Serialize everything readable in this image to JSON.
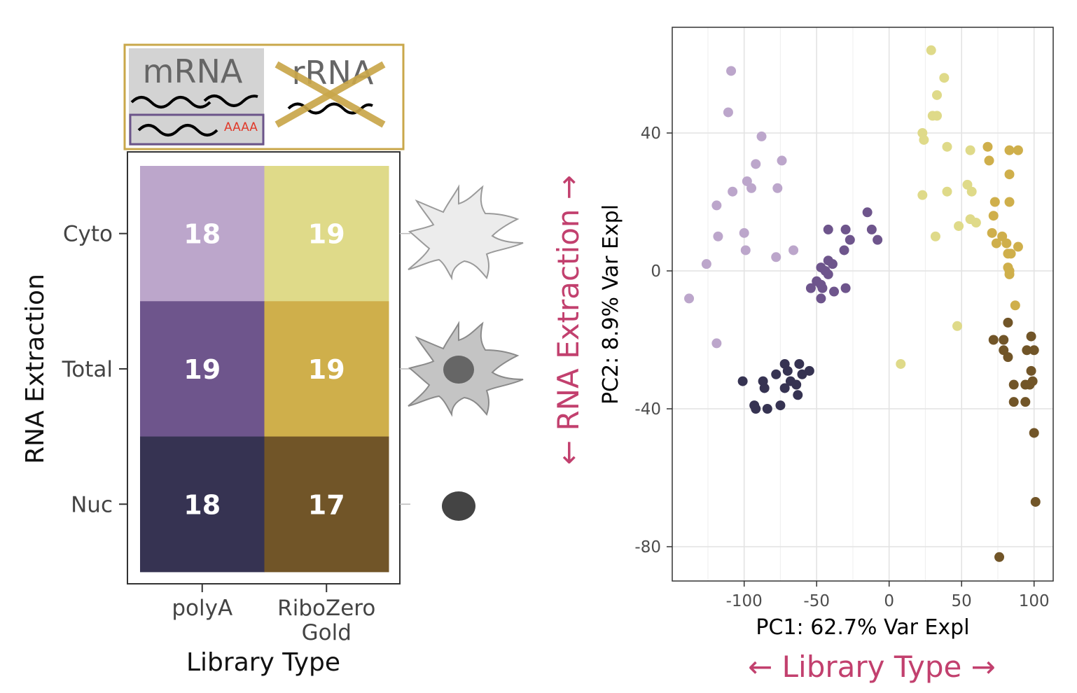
{
  "legend_box": {
    "mrna_label": "mRNA",
    "polya_tail_label": "AAAA",
    "rrna_label": "rRNA"
  },
  "side_labels": {
    "vertical": "← RNA Extraction →",
    "horizontal": "← Library Type →"
  },
  "colors": {
    "polyA_Cyto": "#bca6cb",
    "polyA_Total": "#6e558c",
    "polyA_Nuc": "#363352",
    "RiboZero_Cyto": "#dfda89",
    "RiboZero_Total": "#cfaf4b",
    "RiboZero_Nuc": "#715528",
    "accent": "#c2406e",
    "legend_border": "#c9a74a",
    "polya_box_border": "#6b548a"
  },
  "chart_data": [
    {
      "type": "heatmap",
      "xlabel": "Library Type",
      "ylabel": "RNA Extraction",
      "x_categories": [
        "polyA",
        "RiboZero Gold"
      ],
      "y_categories": [
        "Cyto",
        "Total",
        "Nuc"
      ],
      "values": [
        [
          18,
          19
        ],
        [
          19,
          19
        ],
        [
          18,
          17
        ]
      ]
    },
    {
      "type": "scatter",
      "xlabel": "PC1: 62.7% Var Expl",
      "ylabel": "PC2: 8.9% Var Expl",
      "xlim": [
        -150,
        105
      ],
      "ylim": [
        -90,
        65
      ],
      "x_ticks": [
        -100,
        -50,
        0,
        50,
        100
      ],
      "y_ticks": [
        40,
        0,
        -40,
        -80
      ],
      "grid": true,
      "series": [
        {
          "group": "polyA_Cyto",
          "points": [
            [
              -109,
              58
            ],
            [
              -111,
              46
            ],
            [
              -88,
              39
            ],
            [
              -92,
              31
            ],
            [
              -74,
              32
            ],
            [
              -98,
              26
            ],
            [
              -95,
              24
            ],
            [
              -77,
              24
            ],
            [
              -108,
              23
            ],
            [
              -119,
              19
            ],
            [
              -100,
              11
            ],
            [
              -118,
              10
            ],
            [
              -99,
              6
            ],
            [
              -66,
              6
            ],
            [
              -126,
              2
            ],
            [
              -78,
              4
            ],
            [
              -138,
              -8
            ],
            [
              -119,
              -21
            ]
          ]
        },
        {
          "group": "polyA_Total",
          "points": [
            [
              -15,
              17
            ],
            [
              -42,
              12
            ],
            [
              -30,
              12
            ],
            [
              -12,
              12
            ],
            [
              -8,
              9
            ],
            [
              -27,
              9
            ],
            [
              -31,
              6
            ],
            [
              -42,
              3
            ],
            [
              -39,
              2
            ],
            [
              -47,
              1
            ],
            [
              -44,
              0
            ],
            [
              -42,
              -1
            ],
            [
              -50,
              -3
            ],
            [
              -47,
              -4
            ],
            [
              -54,
              -5
            ],
            [
              -46,
              -5
            ],
            [
              -38,
              -6
            ],
            [
              -30,
              -5
            ],
            [
              -47,
              -8
            ]
          ]
        },
        {
          "group": "polyA_Nuc",
          "points": [
            [
              -72,
              -27
            ],
            [
              -62,
              -27
            ],
            [
              -70,
              -29
            ],
            [
              -55,
              -29
            ],
            [
              -101,
              -32
            ],
            [
              -87,
              -32
            ],
            [
              -60,
              -30
            ],
            [
              -68,
              -32
            ],
            [
              -78,
              -30
            ],
            [
              -86,
              -34
            ],
            [
              -72,
              -34
            ],
            [
              -64,
              -33
            ],
            [
              -63,
              -36
            ],
            [
              -93,
              -39
            ],
            [
              -75,
              -39
            ],
            [
              -92,
              -40
            ],
            [
              -84,
              -40
            ]
          ]
        },
        {
          "group": "RiboZero_Cyto",
          "points": [
            [
              29,
              64
            ],
            [
              38,
              56
            ],
            [
              33,
              51
            ],
            [
              33,
              45
            ],
            [
              30,
              45
            ],
            [
              23,
              40
            ],
            [
              24,
              38
            ],
            [
              40,
              36
            ],
            [
              56,
              35
            ],
            [
              54,
              25
            ],
            [
              57,
              23
            ],
            [
              40,
              23
            ],
            [
              23,
              22
            ],
            [
              48,
              13
            ],
            [
              56,
              15
            ],
            [
              60,
              14
            ],
            [
              32,
              10
            ],
            [
              47,
              -16
            ],
            [
              8,
              -27
            ]
          ]
        },
        {
          "group": "RiboZero_Total",
          "points": [
            [
              68,
              36
            ],
            [
              83,
              35
            ],
            [
              89,
              35
            ],
            [
              69,
              32
            ],
            [
              83,
              28
            ],
            [
              73,
              20
            ],
            [
              83,
              20
            ],
            [
              72,
              16
            ],
            [
              71,
              11
            ],
            [
              78,
              10
            ],
            [
              81,
              8
            ],
            [
              74,
              8
            ],
            [
              89,
              7
            ],
            [
              82,
              5
            ],
            [
              84,
              5
            ],
            [
              82,
              1
            ],
            [
              83,
              0
            ],
            [
              83,
              -1
            ],
            [
              87,
              -10
            ]
          ]
        },
        {
          "group": "RiboZero_Nuc",
          "points": [
            [
              82,
              -15
            ],
            [
              72,
              -20
            ],
            [
              79,
              -20
            ],
            [
              98,
              -19
            ],
            [
              79,
              -23
            ],
            [
              95,
              -23
            ],
            [
              100,
              -23
            ],
            [
              82,
              -25
            ],
            [
              98,
              -29
            ],
            [
              99,
              -32
            ],
            [
              86,
              -33
            ],
            [
              94,
              -33
            ],
            [
              97,
              -33
            ],
            [
              86,
              -38
            ],
            [
              94,
              -38
            ],
            [
              100,
              -47
            ],
            [
              101,
              -67
            ],
            [
              76,
              -83
            ]
          ]
        }
      ]
    }
  ]
}
